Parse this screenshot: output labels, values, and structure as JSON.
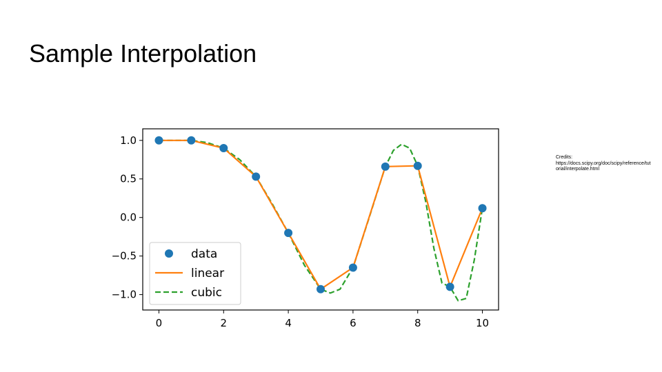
{
  "slide": {
    "title": "Sample Interpolation",
    "credits_heading": "Credits:",
    "credits_url": "https://docs.scipy.org/doc/scipy/reference/tutorial/interpolate.html"
  },
  "chart_data": {
    "type": "line",
    "xlim": [
      -0.5,
      10.5
    ],
    "ylim": [
      -1.2,
      1.15
    ],
    "xticks": [
      0,
      2,
      4,
      6,
      8,
      10
    ],
    "yticks": [
      1.0,
      0.5,
      0.0,
      -0.5,
      -1.0
    ],
    "xtick_labels": [
      "0",
      "2",
      "4",
      "6",
      "8",
      "10"
    ],
    "ytick_labels": [
      "1.0",
      "0.5",
      "0.0",
      "−0.5",
      "−1.0"
    ],
    "grid": false,
    "legend_position": "lower-left",
    "series": [
      {
        "name": "data",
        "style": "markers",
        "color": "#1f77b4",
        "x": [
          0,
          1,
          2,
          3,
          4,
          5,
          6,
          7,
          8,
          9,
          10
        ],
        "y": [
          1.0,
          1.0,
          0.9,
          0.53,
          -0.2,
          -0.93,
          -0.65,
          0.66,
          0.67,
          -0.9,
          0.12
        ]
      },
      {
        "name": "linear",
        "style": "solid",
        "color": "#ff7f0e",
        "x": [
          0,
          1,
          2,
          3,
          4,
          5,
          6,
          7,
          8,
          9,
          10
        ],
        "y": [
          1.0,
          1.0,
          0.9,
          0.53,
          -0.2,
          -0.93,
          -0.65,
          0.66,
          0.67,
          -0.9,
          0.12
        ]
      },
      {
        "name": "cubic",
        "style": "dashed",
        "color": "#2ca02c",
        "x": [
          0,
          0.5,
          1,
          1.5,
          2,
          2.5,
          3,
          3.5,
          4,
          4.5,
          5,
          5.3,
          5.6,
          6,
          6.5,
          7,
          7.25,
          7.5,
          7.75,
          8,
          8.25,
          8.5,
          8.75,
          9,
          9.25,
          9.5,
          9.75,
          10
        ],
        "y": [
          1.0,
          1.0,
          1.0,
          0.97,
          0.9,
          0.75,
          0.53,
          0.18,
          -0.2,
          -0.62,
          -0.93,
          -0.98,
          -0.93,
          -0.65,
          0.0,
          0.66,
          0.87,
          0.95,
          0.9,
          0.67,
          0.2,
          -0.4,
          -0.85,
          -0.9,
          -1.08,
          -1.05,
          -0.55,
          0.12
        ]
      }
    ]
  }
}
